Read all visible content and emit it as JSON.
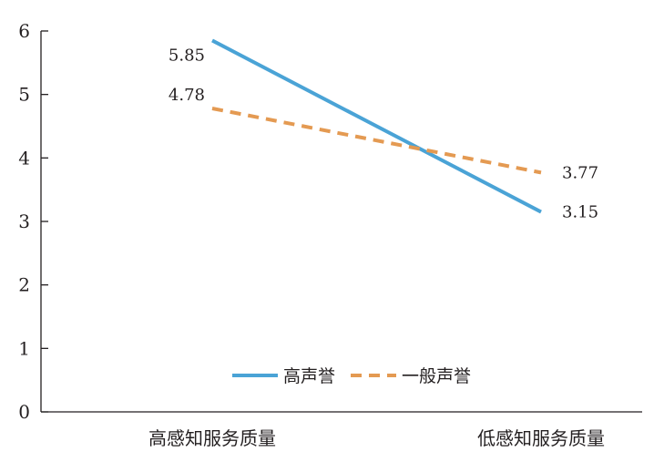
{
  "chart_data": {
    "type": "line",
    "categories": [
      "高感知服务质量",
      "低感知服务质量"
    ],
    "series": [
      {
        "name": "高声誉",
        "values": [
          5.85,
          3.15
        ],
        "labels": [
          "5.85",
          "3.15"
        ],
        "color": "#4aa3d6",
        "style": "solid"
      },
      {
        "name": "一般声誉",
        "values": [
          4.78,
          3.77
        ],
        "labels": [
          "4.78",
          "3.77"
        ],
        "color": "#e49a52",
        "style": "dashed"
      }
    ],
    "ylim": [
      0,
      6
    ],
    "yticks": [
      "0",
      "1",
      "2",
      "3",
      "4",
      "5",
      "6"
    ],
    "title": "",
    "xlabel": "",
    "ylabel": "",
    "grid": false,
    "legend_position": "bottom-center"
  }
}
